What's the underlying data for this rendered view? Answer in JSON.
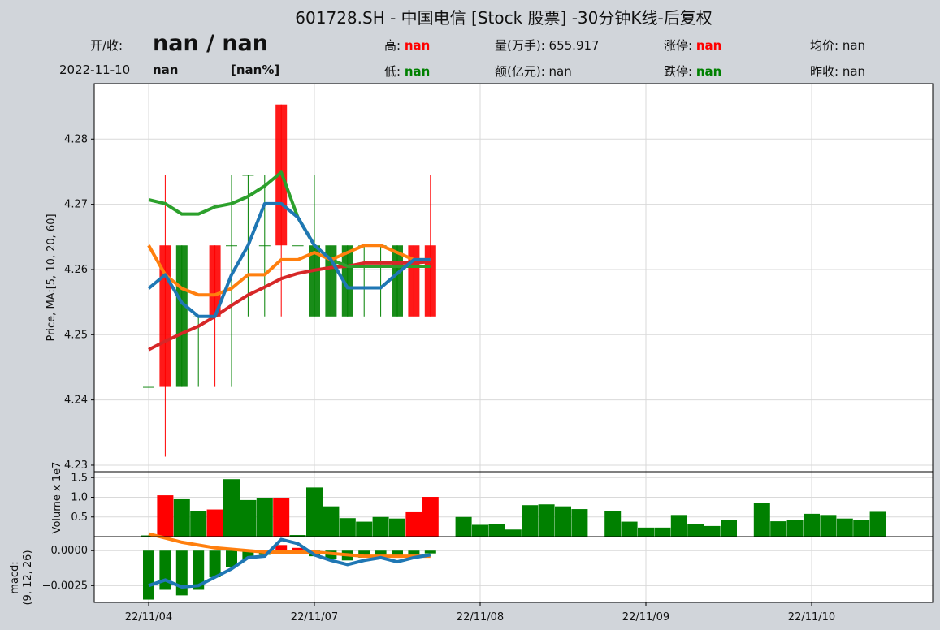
{
  "header": {
    "title": "601728.SH - 中国电信 [Stock 股票] -30分钟K线-后复权",
    "open_close_label": "开/收:",
    "open_close_value": "nan / nan",
    "date": "2022-11-10",
    "change_value": "nan",
    "change_pct": "[nan%]",
    "high_label": "高:",
    "high_value": "nan",
    "low_label": "低:",
    "low_value": "nan",
    "volume_label": "量(万手):",
    "volume_value": "655.917",
    "amount_label": "额(亿元):",
    "amount_value": "nan",
    "limit_up_label": "涨停:",
    "limit_up_value": "nan",
    "limit_down_label": "跌停:",
    "limit_down_value": "nan",
    "avg_label": "均价:",
    "avg_value": "nan",
    "prev_close_label": "昨收:",
    "prev_close_value": "nan"
  },
  "colors": {
    "up": "#ff0000",
    "down": "#008000",
    "ma5": "#1f77b4",
    "ma10": "#ff7f0e",
    "ma20": "#2ca02c",
    "ma60": "#d62728",
    "macd_line": "#1f77b4",
    "signal_line": "#ff7f0e",
    "background": "#d1d5da",
    "grid": "#d9d9d9"
  },
  "chart_data": {
    "type": "candlestick",
    "grid": true,
    "xticks": [
      {
        "index": 0,
        "label": "22/11/04"
      },
      {
        "index": 10,
        "label": "22/11/07"
      },
      {
        "index": 20,
        "label": "22/11/08"
      },
      {
        "index": 30,
        "label": "22/11/09"
      },
      {
        "index": 40,
        "label": "22/11/10"
      }
    ],
    "price_panel": {
      "ylabel": "Price, MA:[5, 10, 20, 60]",
      "ylim": [
        4.229,
        4.2885
      ],
      "yticks": [
        4.23,
        4.24,
        4.25,
        4.26,
        4.27,
        4.28
      ],
      "candles": [
        {
          "i": 0,
          "open": 4.242,
          "close": 4.242,
          "high": 4.242,
          "low": 4.242
        },
        {
          "i": 1,
          "open": 4.242,
          "close": 4.2637,
          "high": 4.2745,
          "low": 4.2313
        },
        {
          "i": 2,
          "open": 4.2637,
          "close": 4.242,
          "high": 4.2637,
          "low": 4.242
        },
        {
          "i": 3,
          "open": 4.2528,
          "close": 4.2528,
          "high": 4.2528,
          "low": 4.242
        },
        {
          "i": 4,
          "open": 4.2528,
          "close": 4.2637,
          "high": 4.2637,
          "low": 4.242
        },
        {
          "i": 5,
          "open": 4.2637,
          "close": 4.2637,
          "high": 4.2745,
          "low": 4.242
        },
        {
          "i": 6,
          "open": 4.2745,
          "close": 4.2745,
          "high": 4.2745,
          "low": 4.2528
        },
        {
          "i": 7,
          "open": 4.2637,
          "close": 4.2637,
          "high": 4.2745,
          "low": 4.2528
        },
        {
          "i": 8,
          "open": 4.2637,
          "close": 4.2853,
          "high": 4.2853,
          "low": 4.2528
        },
        {
          "i": 9,
          "open": 4.2637,
          "close": 4.2637,
          "high": 4.2637,
          "low": 4.2637
        },
        {
          "i": 10,
          "open": 4.2637,
          "close": 4.2528,
          "high": 4.2745,
          "low": 4.2528
        },
        {
          "i": 11,
          "open": 4.2637,
          "close": 4.2528,
          "high": 4.2637,
          "low": 4.2528
        },
        {
          "i": 12,
          "open": 4.2637,
          "close": 4.2528,
          "high": 4.2637,
          "low": 4.2528
        },
        {
          "i": 13,
          "open": 4.2637,
          "close": 4.2637,
          "high": 4.2637,
          "low": 4.2528
        },
        {
          "i": 14,
          "open": 4.2637,
          "close": 4.2637,
          "high": 4.2637,
          "low": 4.2528
        },
        {
          "i": 15,
          "open": 4.2637,
          "close": 4.2528,
          "high": 4.2637,
          "low": 4.2528
        },
        {
          "i": 16,
          "open": 4.2528,
          "close": 4.2637,
          "high": 4.2637,
          "low": 4.2528
        },
        {
          "i": 17,
          "open": 4.2528,
          "close": 4.2637,
          "high": 4.2745,
          "low": 4.2528
        }
      ],
      "ma5": [
        4.2571,
        4.2592,
        4.2549,
        4.2528,
        4.2528,
        4.2592,
        4.2637,
        4.2701,
        4.2701,
        4.268,
        4.2637,
        4.2615,
        4.2572,
        4.2572,
        4.2572,
        4.2594,
        4.2615,
        4.2615
      ],
      "ma10": [
        4.2637,
        4.2592,
        4.2571,
        4.2561,
        4.2561,
        4.2571,
        4.2592,
        4.2592,
        4.2615,
        4.2615,
        4.2626,
        4.2615,
        4.2626,
        4.2637,
        4.2637,
        4.2626,
        4.2615,
        4.2615
      ],
      "ma20": [
        4.2707,
        4.2701,
        4.2685,
        4.2685,
        4.2696,
        4.2701,
        4.2712,
        4.2728,
        4.2749,
        4.268,
        4.2637,
        4.2615,
        4.2605,
        4.2605,
        4.2605,
        4.2605,
        4.2605,
        4.2605
      ],
      "ma60": [
        4.2477,
        4.249,
        4.2502,
        4.2513,
        4.2528,
        4.2545,
        4.2561,
        4.2573,
        4.2586,
        4.2594,
        4.2599,
        4.2603,
        4.2605,
        4.261,
        4.261,
        4.261,
        4.261,
        4.2612
      ]
    },
    "volume_panel": {
      "ylabel": "Volume x 1e7",
      "ylim": [
        0,
        1.65
      ],
      "yticks": [
        0.5,
        1.0,
        1.5
      ],
      "bars": [
        {
          "i": 0,
          "v": 0.03,
          "up": false
        },
        {
          "i": 1,
          "v": 1.05,
          "up": true
        },
        {
          "i": 2,
          "v": 0.95,
          "up": false
        },
        {
          "i": 3,
          "v": 0.65,
          "up": false
        },
        {
          "i": 4,
          "v": 0.69,
          "up": true
        },
        {
          "i": 5,
          "v": 1.46,
          "up": false
        },
        {
          "i": 6,
          "v": 0.93,
          "up": false
        },
        {
          "i": 7,
          "v": 0.99,
          "up": false
        },
        {
          "i": 8,
          "v": 0.97,
          "up": true
        },
        {
          "i": 9,
          "v": 0.04,
          "up": false
        },
        {
          "i": 10,
          "v": 1.25,
          "up": false
        },
        {
          "i": 11,
          "v": 0.77,
          "up": false
        },
        {
          "i": 12,
          "v": 0.47,
          "up": false
        },
        {
          "i": 13,
          "v": 0.38,
          "up": false
        },
        {
          "i": 14,
          "v": 0.5,
          "up": false
        },
        {
          "i": 15,
          "v": 0.46,
          "up": false
        },
        {
          "i": 16,
          "v": 0.62,
          "up": true
        },
        {
          "i": 17,
          "v": 1.01,
          "up": true
        },
        {
          "i": 19,
          "v": 0.5,
          "up": false
        },
        {
          "i": 20,
          "v": 0.3,
          "up": false
        },
        {
          "i": 21,
          "v": 0.32,
          "up": false
        },
        {
          "i": 22,
          "v": 0.18,
          "up": false
        },
        {
          "i": 23,
          "v": 0.8,
          "up": false
        },
        {
          "i": 24,
          "v": 0.82,
          "up": false
        },
        {
          "i": 25,
          "v": 0.77,
          "up": false
        },
        {
          "i": 26,
          "v": 0.7,
          "up": false
        },
        {
          "i": 28,
          "v": 0.64,
          "up": false
        },
        {
          "i": 29,
          "v": 0.38,
          "up": false
        },
        {
          "i": 30,
          "v": 0.23,
          "up": false
        },
        {
          "i": 31,
          "v": 0.23,
          "up": false
        },
        {
          "i": 32,
          "v": 0.55,
          "up": false
        },
        {
          "i": 33,
          "v": 0.32,
          "up": false
        },
        {
          "i": 34,
          "v": 0.27,
          "up": false
        },
        {
          "i": 35,
          "v": 0.42,
          "up": false
        },
        {
          "i": 37,
          "v": 0.86,
          "up": false
        },
        {
          "i": 38,
          "v": 0.39,
          "up": false
        },
        {
          "i": 39,
          "v": 0.42,
          "up": false
        },
        {
          "i": 40,
          "v": 0.58,
          "up": false
        },
        {
          "i": 41,
          "v": 0.55,
          "up": false
        },
        {
          "i": 42,
          "v": 0.46,
          "up": false
        },
        {
          "i": 43,
          "v": 0.42,
          "up": false
        },
        {
          "i": 44,
          "v": 0.63,
          "up": false
        }
      ]
    },
    "macd_panel": {
      "ylabel_line1": "macd:",
      "ylabel_line2": "(9, 12, 26)",
      "ylim": [
        -0.0037,
        0.001
      ],
      "yticks": [
        0.0,
        -0.0025
      ],
      "ytick_labels": [
        "0.0000",
        "−0.0025"
      ],
      "hist": [
        -0.0035,
        -0.0028,
        -0.0032,
        -0.0028,
        -0.0019,
        -0.0012,
        -0.0006,
        -0.0003,
        0.0004,
        0.0002,
        -0.0004,
        -0.0006,
        -0.0007,
        -0.0005,
        -0.0004,
        -0.0004,
        -0.0003,
        -0.0002
      ],
      "macd": [
        -0.0025,
        -0.0021,
        -0.0026,
        -0.0025,
        -0.0019,
        -0.0013,
        -0.0005,
        -0.0004,
        0.0008,
        0.0005,
        -0.0003,
        -0.0007,
        -0.001,
        -0.0007,
        -0.0005,
        -0.0008,
        -0.0005,
        -0.0003
      ],
      "signal": [
        0.0012,
        0.0009,
        0.0006,
        0.0004,
        0.0002,
        0.0001,
        0.0,
        -0.0001,
        -0.0001,
        -0.0001,
        -0.0001,
        -0.0002,
        -0.0003,
        -0.0004,
        -0.0004,
        -0.0004,
        -0.0004,
        -0.0004
      ]
    }
  }
}
